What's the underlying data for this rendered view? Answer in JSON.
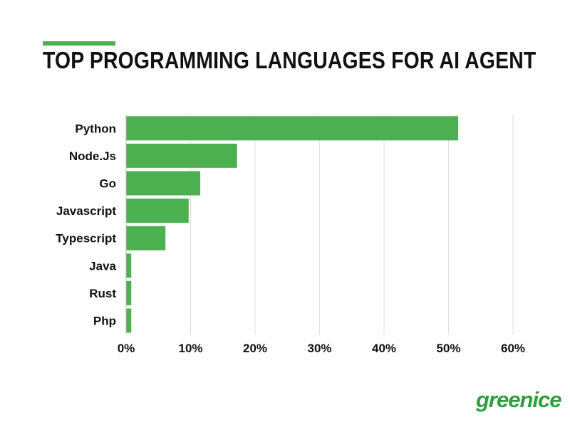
{
  "title": "TOP PROGRAMMING LANGUAGES FOR AI AGENT",
  "brand": "greenice",
  "colors": {
    "bar": "#4caf50",
    "brand": "#2e9e3e",
    "text": "#111111",
    "grid": "#dddddd"
  },
  "chart_data": {
    "type": "bar",
    "orientation": "horizontal",
    "title": "TOP PROGRAMMING LANGUAGES FOR AI AGENT",
    "categories": [
      "Python",
      "Node.Js",
      "Go",
      "Javascript",
      "Typescript",
      "Java",
      "Rust",
      "Php"
    ],
    "values": [
      51.5,
      17.2,
      11.5,
      9.7,
      6.1,
      0.8,
      0.8,
      0.8
    ],
    "xlim": [
      0,
      60
    ],
    "xticks": [
      "0%",
      "10%",
      "20%",
      "30%",
      "40%",
      "50%",
      "60%"
    ],
    "grid": true,
    "legend": "none"
  }
}
